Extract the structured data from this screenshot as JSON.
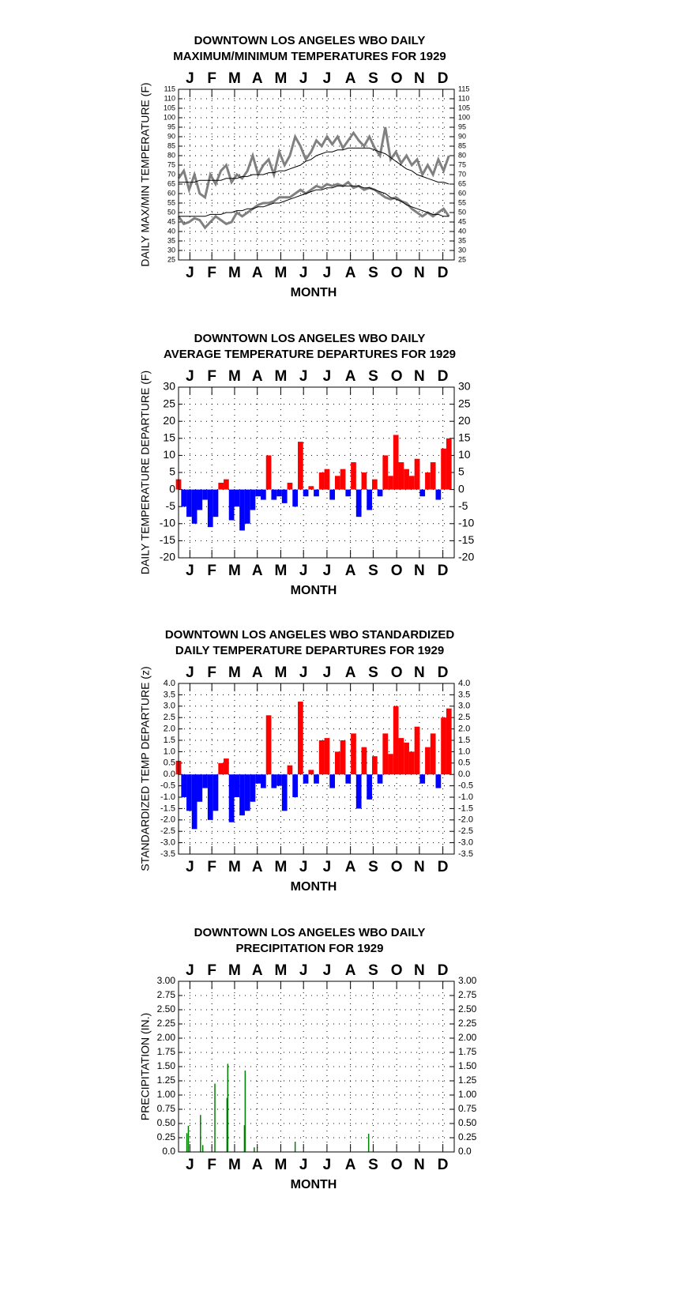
{
  "chart_data": [
    {
      "type": "line",
      "title": [
        "DOWNTOWN LOS ANGELES WBO DAILY",
        "MAXIMUM/MINIMUM TEMPERATURES FOR 1929"
      ],
      "xlabel": "MONTH",
      "ylabel": "DAILY MAX/MIN TEMPERATURE (F)",
      "xlim": [
        1,
        365
      ],
      "xticks": [
        {
          "value": 16,
          "label": "J"
        },
        {
          "value": 45,
          "label": "F"
        },
        {
          "value": 75,
          "label": "M"
        },
        {
          "value": 105,
          "label": "A"
        },
        {
          "value": 136,
          "label": "M"
        },
        {
          "value": 166,
          "label": "J"
        },
        {
          "value": 197,
          "label": "J"
        },
        {
          "value": 228,
          "label": "A"
        },
        {
          "value": 258,
          "label": "S"
        },
        {
          "value": 289,
          "label": "O"
        },
        {
          "value": 319,
          "label": "N"
        },
        {
          "value": 350,
          "label": "D"
        }
      ],
      "ylim": [
        25,
        115
      ],
      "yticks": [
        25,
        30,
        35,
        40,
        45,
        50,
        55,
        60,
        65,
        70,
        75,
        80,
        85,
        90,
        95,
        100,
        105,
        110,
        115
      ],
      "grid": true,
      "x": [
        1,
        8,
        15,
        22,
        29,
        36,
        43,
        50,
        57,
        64,
        71,
        78,
        85,
        92,
        99,
        106,
        113,
        120,
        127,
        134,
        141,
        148,
        155,
        162,
        169,
        176,
        183,
        190,
        197,
        204,
        211,
        218,
        225,
        232,
        239,
        246,
        253,
        260,
        267,
        274,
        281,
        288,
        295,
        302,
        309,
        316,
        323,
        330,
        337,
        344,
        351,
        358
      ],
      "series": [
        {
          "color": "#808080",
          "values": [
            68,
            72,
            62,
            70,
            60,
            58,
            70,
            65,
            72,
            75,
            66,
            70,
            68,
            72,
            80,
            70,
            75,
            78,
            70,
            82,
            75,
            80,
            90,
            85,
            78,
            82,
            88,
            85,
            90,
            86,
            90,
            84,
            88,
            92,
            88,
            85,
            90,
            84,
            80,
            95,
            78,
            82,
            76,
            80,
            75,
            78,
            70,
            75,
            70,
            78,
            72,
            80
          ]
        },
        {
          "color": "#808080",
          "values": [
            48,
            44,
            45,
            47,
            46,
            42,
            45,
            48,
            46,
            44,
            45,
            50,
            48,
            50,
            52,
            54,
            55,
            55,
            56,
            58,
            58,
            58,
            60,
            62,
            60,
            62,
            64,
            63,
            65,
            64,
            65,
            64,
            66,
            63,
            64,
            62,
            63,
            62,
            60,
            58,
            57,
            58,
            56,
            55,
            52,
            50,
            48,
            50,
            48,
            50,
            52,
            48
          ]
        },
        {
          "color": "#000000",
          "values": [
            66,
            66,
            66,
            66,
            67,
            67,
            67,
            67,
            67,
            68,
            68,
            68,
            69,
            69,
            70,
            70,
            70,
            71,
            71,
            72,
            72,
            73,
            74,
            75,
            77,
            78,
            80,
            81,
            82,
            82,
            83,
            83,
            84,
            84,
            84,
            84,
            84,
            83,
            82,
            81,
            79,
            77,
            75,
            73,
            72,
            70,
            69,
            68,
            67,
            66,
            66,
            65
          ]
        },
        {
          "color": "#000000",
          "values": [
            48,
            48,
            48,
            48,
            48,
            48,
            49,
            49,
            49,
            50,
            50,
            51,
            51,
            52,
            52,
            53,
            53,
            54,
            55,
            55,
            56,
            57,
            58,
            59,
            60,
            61,
            62,
            62,
            63,
            63,
            64,
            64,
            64,
            64,
            64,
            63,
            63,
            62,
            61,
            60,
            58,
            57,
            56,
            54,
            53,
            52,
            51,
            50,
            49,
            49,
            48,
            48
          ]
        }
      ]
    },
    {
      "type": "bar",
      "title": [
        "DOWNTOWN LOS ANGELES WBO DAILY",
        "AVERAGE TEMPERATURE DEPARTURES FOR 1929"
      ],
      "xlabel": "MONTH",
      "ylabel": "DAILY TEMPERATURE DEPARTURE (F)",
      "xlim": [
        1,
        365
      ],
      "xticks": [
        {
          "value": 16,
          "label": "J"
        },
        {
          "value": 45,
          "label": "F"
        },
        {
          "value": 75,
          "label": "M"
        },
        {
          "value": 105,
          "label": "A"
        },
        {
          "value": 136,
          "label": "M"
        },
        {
          "value": 166,
          "label": "J"
        },
        {
          "value": 197,
          "label": "J"
        },
        {
          "value": 228,
          "label": "A"
        },
        {
          "value": 258,
          "label": "S"
        },
        {
          "value": 289,
          "label": "O"
        },
        {
          "value": 319,
          "label": "N"
        },
        {
          "value": 350,
          "label": "D"
        }
      ],
      "ylim": [
        -20,
        30
      ],
      "yticks": [
        -20,
        -15,
        -10,
        -5,
        0,
        5,
        10,
        15,
        20,
        25,
        30
      ],
      "grid": true,
      "positive_color": "#ff0000",
      "negative_color": "#0000ff",
      "x": [
        1,
        8,
        15,
        22,
        29,
        36,
        43,
        50,
        57,
        64,
        71,
        78,
        85,
        92,
        99,
        106,
        113,
        120,
        127,
        134,
        141,
        148,
        155,
        162,
        169,
        176,
        183,
        190,
        197,
        204,
        211,
        218,
        225,
        232,
        239,
        246,
        253,
        260,
        267,
        274,
        281,
        288,
        295,
        302,
        309,
        316,
        323,
        330,
        337,
        344,
        351,
        358
      ],
      "values": [
        3,
        -5,
        -8,
        -10,
        -6,
        -3,
        -11,
        -8,
        2,
        3,
        -9,
        -5,
        -12,
        -10,
        -6,
        -2,
        -3,
        10,
        -3,
        -2,
        -4,
        2,
        -5,
        14,
        -2,
        1,
        -2,
        5,
        6,
        -3,
        4,
        6,
        -2,
        8,
        -8,
        5,
        -6,
        3,
        -2,
        10,
        4,
        16,
        8,
        6,
        4,
        9,
        -2,
        5,
        8,
        -3,
        12,
        15
      ]
    },
    {
      "type": "bar",
      "title": [
        "DOWNTOWN LOS ANGELES WBO STANDARDIZED",
        "DAILY TEMPERATURE DEPARTURES FOR 1929"
      ],
      "xlabel": "MONTH",
      "ylabel": "STANDARDIZED TEMP DEPARTURE (z)",
      "xlim": [
        1,
        365
      ],
      "xticks": [
        {
          "value": 16,
          "label": "J"
        },
        {
          "value": 45,
          "label": "F"
        },
        {
          "value": 75,
          "label": "M"
        },
        {
          "value": 105,
          "label": "A"
        },
        {
          "value": 136,
          "label": "M"
        },
        {
          "value": 166,
          "label": "J"
        },
        {
          "value": 197,
          "label": "J"
        },
        {
          "value": 228,
          "label": "A"
        },
        {
          "value": 258,
          "label": "S"
        },
        {
          "value": 289,
          "label": "O"
        },
        {
          "value": 319,
          "label": "N"
        },
        {
          "value": 350,
          "label": "D"
        }
      ],
      "ylim": [
        -3.5,
        4
      ],
      "yticks": [
        -3.5,
        {
          "value": -3,
          "label": "-3.0"
        },
        -2.5,
        {
          "value": -2,
          "label": "-2.0"
        },
        -1.5,
        {
          "value": -1,
          "label": "-1.0"
        },
        -0.5,
        {
          "value": 0,
          "label": "0.0"
        },
        0.5,
        {
          "value": 1,
          "label": "1.0"
        },
        1.5,
        {
          "value": 2,
          "label": "2.0"
        },
        2.5,
        {
          "value": 3,
          "label": "3.0"
        },
        3.5,
        {
          "value": 4,
          "label": "4.0"
        }
      ],
      "grid": true,
      "positive_color": "#ff0000",
      "negative_color": "#0000ff",
      "x": [
        1,
        8,
        15,
        22,
        29,
        36,
        43,
        50,
        57,
        64,
        71,
        78,
        85,
        92,
        99,
        106,
        113,
        120,
        127,
        134,
        141,
        148,
        155,
        162,
        169,
        176,
        183,
        190,
        197,
        204,
        211,
        218,
        225,
        232,
        239,
        246,
        253,
        260,
        267,
        274,
        281,
        288,
        295,
        302,
        309,
        316,
        323,
        330,
        337,
        344,
        351,
        358
      ],
      "values": [
        0.6,
        -1.0,
        -1.6,
        -2.4,
        -1.2,
        -0.6,
        -2.0,
        -1.6,
        0.5,
        0.7,
        -2.1,
        -1.0,
        -1.8,
        -1.6,
        -1.2,
        -0.4,
        -0.6,
        2.6,
        -0.6,
        -0.5,
        -1.6,
        0.4,
        -1.0,
        3.2,
        -0.4,
        0.2,
        -0.4,
        1.5,
        1.6,
        -0.6,
        1.0,
        1.5,
        -0.4,
        1.8,
        -1.5,
        1.2,
        -1.1,
        0.8,
        -0.4,
        1.8,
        0.9,
        3.0,
        1.6,
        1.4,
        1.0,
        2.1,
        -0.4,
        1.2,
        1.8,
        -0.6,
        2.5,
        2.9
      ]
    },
    {
      "type": "bar",
      "title": [
        "DOWNTOWN LOS ANGELES WBO DAILY",
        "PRECIPITATION FOR 1929"
      ],
      "xlabel": "MONTH",
      "ylabel": "PRECIPITATION (IN.)",
      "xlim": [
        1,
        365
      ],
      "xticks": [
        {
          "value": 16,
          "label": "J"
        },
        {
          "value": 45,
          "label": "F"
        },
        {
          "value": 75,
          "label": "M"
        },
        {
          "value": 105,
          "label": "A"
        },
        {
          "value": 136,
          "label": "M"
        },
        {
          "value": 166,
          "label": "J"
        },
        {
          "value": 197,
          "label": "J"
        },
        {
          "value": 228,
          "label": "A"
        },
        {
          "value": 258,
          "label": "S"
        },
        {
          "value": 289,
          "label": "O"
        },
        {
          "value": 319,
          "label": "N"
        },
        {
          "value": 350,
          "label": "D"
        }
      ],
      "ylim": [
        0,
        3
      ],
      "yticks": [
        {
          "value": 0,
          "label": "0.0"
        },
        0.25,
        {
          "value": 0.5,
          "label": "0.50"
        },
        0.75,
        {
          "value": 1,
          "label": "1.00"
        },
        1.25,
        {
          "value": 1.5,
          "label": "1.50"
        },
        1.75,
        {
          "value": 2,
          "label": "2.00"
        },
        2.25,
        {
          "value": 2.5,
          "label": "2.50"
        },
        2.75,
        {
          "value": 3,
          "label": "3.00"
        }
      ],
      "grid": true,
      "color": "#008000",
      "x": [
        12,
        14,
        30,
        33,
        49,
        65,
        66,
        88,
        89,
        101,
        155,
        252
      ],
      "values": [
        0.33,
        0.46,
        0.65,
        0.12,
        1.2,
        0.95,
        1.55,
        0.47,
        1.43,
        0.08,
        0.18,
        0.32
      ]
    }
  ]
}
